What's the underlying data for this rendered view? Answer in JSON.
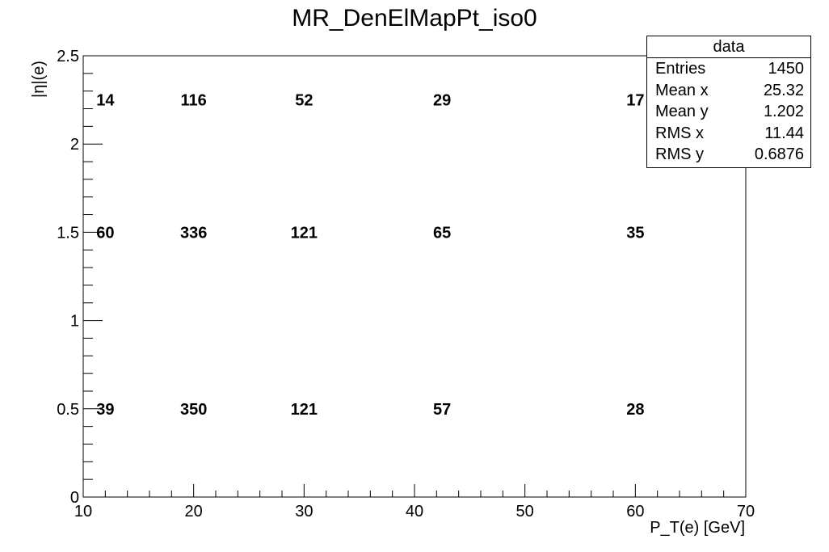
{
  "chart_data": {
    "type": "heatmap",
    "title": "MR_DenElMapPt_iso0",
    "xlabel": "P_T(e) [GeV]",
    "ylabel": "|η|(e)",
    "xlim": [
      10,
      70
    ],
    "ylim": [
      0,
      2.5
    ],
    "x_ticks": [
      "10",
      "20",
      "30",
      "40",
      "50",
      "60",
      "70"
    ],
    "y_ticks": [
      "0",
      "0.5",
      "1",
      "1.5",
      "2",
      "2.5"
    ],
    "cells": [
      {
        "x": 12,
        "y": 0.5,
        "value": 39
      },
      {
        "x": 20,
        "y": 0.5,
        "value": 350
      },
      {
        "x": 30,
        "y": 0.5,
        "value": 121
      },
      {
        "x": 42.5,
        "y": 0.5,
        "value": 57
      },
      {
        "x": 60,
        "y": 0.5,
        "value": 28
      },
      {
        "x": 12,
        "y": 1.5,
        "value": 60
      },
      {
        "x": 20,
        "y": 1.5,
        "value": 336
      },
      {
        "x": 30,
        "y": 1.5,
        "value": 121
      },
      {
        "x": 42.5,
        "y": 1.5,
        "value": 65
      },
      {
        "x": 60,
        "y": 1.5,
        "value": 35
      },
      {
        "x": 12,
        "y": 2.25,
        "value": 14
      },
      {
        "x": 20,
        "y": 2.25,
        "value": 116
      },
      {
        "x": 30,
        "y": 2.25,
        "value": 52
      },
      {
        "x": 42.5,
        "y": 2.25,
        "value": 29
      },
      {
        "x": 60,
        "y": 2.25,
        "value": 17
      }
    ],
    "grid": false
  },
  "stats_box": {
    "title": "data",
    "rows": [
      {
        "label": "Entries",
        "value": "1450"
      },
      {
        "label": "Mean x",
        "value": "25.32"
      },
      {
        "label": "Mean y",
        "value": "1.202"
      },
      {
        "label": "RMS x",
        "value": "11.44"
      },
      {
        "label": "RMS y",
        "value": "0.6876"
      }
    ]
  }
}
